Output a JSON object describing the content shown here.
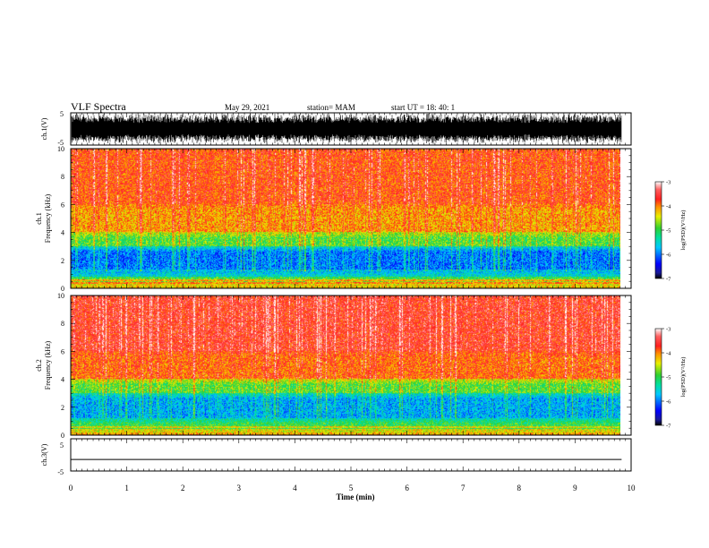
{
  "header": {
    "title": "VLF Spectra",
    "date": "May 29, 2021",
    "station": "station= MAM",
    "start": "start  UT  =   18: 40: 1"
  },
  "chart_data": [
    {
      "type": "line",
      "name": "ch1-waveform",
      "ylabel": "ch.1(V)",
      "ylim": [
        -5,
        5
      ],
      "ytick_labels": [
        "5",
        "-5"
      ],
      "x": [
        0,
        10
      ],
      "description_values": "dense noise, amplitude approx -5 to 5 V"
    },
    {
      "type": "heatmap",
      "name": "ch1-spectrogram",
      "ylabel_top": "ch.1",
      "ylabel": "Frequency  (kHz)",
      "ylim": [
        0,
        10
      ],
      "yticks": [
        0,
        2,
        4,
        6,
        8,
        10
      ],
      "xlim": [
        0,
        10
      ],
      "colorbar": {
        "label": "log(PSD)(V²/Hz)",
        "ticks": [
          "-3",
          "-4",
          "-5",
          "-6",
          "-7"
        ],
        "range": [
          -7,
          -3
        ]
      },
      "bands": [
        {
          "from": 0,
          "to": 0.3,
          "level": -4.2
        },
        {
          "from": 0.3,
          "to": 0.8,
          "level": -4.6
        },
        {
          "from": 0.8,
          "to": 1.3,
          "level": -5.5
        },
        {
          "from": 1.3,
          "to": 3.0,
          "level": -6.1
        },
        {
          "from": 3.0,
          "to": 4.0,
          "level": -5.0
        },
        {
          "from": 4.0,
          "to": 6.0,
          "level": -4.2
        },
        {
          "from": 6.0,
          "to": 10.0,
          "level": -3.9
        }
      ]
    },
    {
      "type": "heatmap",
      "name": "ch2-spectrogram",
      "ylabel_top": "ch.2",
      "ylabel": "Frequency  (kHz)",
      "ylim": [
        0,
        10
      ],
      "yticks": [
        0,
        2,
        4,
        6,
        8,
        10
      ],
      "xlim": [
        0,
        10
      ],
      "colorbar": {
        "label": "log(PSD)(V²/Hz)",
        "ticks": [
          "-3",
          "-4",
          "-5",
          "-6",
          "-7"
        ],
        "range": [
          -7,
          -3
        ]
      },
      "bands": [
        {
          "from": 0,
          "to": 0.3,
          "level": -4.0
        },
        {
          "from": 0.3,
          "to": 1.2,
          "level": -5.0
        },
        {
          "from": 1.2,
          "to": 3.0,
          "level": -5.9
        },
        {
          "from": 3.0,
          "to": 4.0,
          "level": -5.0
        },
        {
          "from": 4.0,
          "to": 6.0,
          "level": -4.0
        },
        {
          "from": 6.0,
          "to": 10.0,
          "level": -3.7
        }
      ]
    },
    {
      "type": "line",
      "name": "ch3-waveform",
      "ylabel": "ch.3(V)",
      "ylim": [
        -5,
        5
      ],
      "ytick_labels": [
        "5",
        "-5"
      ],
      "x": [
        0,
        10
      ],
      "y_constant": -1.5
    }
  ],
  "xaxis": {
    "label": "Time  (min)",
    "ticks": [
      "0",
      "1",
      "2",
      "3",
      "4",
      "5",
      "6",
      "7",
      "8",
      "9",
      "10"
    ],
    "data_end": 9.83
  }
}
